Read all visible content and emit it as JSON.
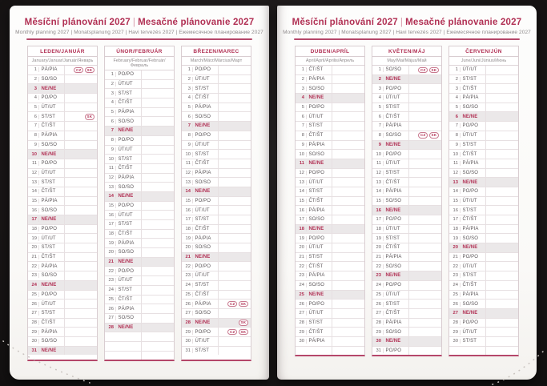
{
  "header": {
    "title_left": "Měsíční plánování 2027",
    "divider": "|",
    "title_right": "Mesačné plánovanie 2027",
    "subtitle": "Monthly planning 2027 | Monatsplanung 2027 | Havi tervezés 2027 | Ежемесячное планирование 2027"
  },
  "colors": {
    "accent": "#b13054",
    "rule": "#b5476a",
    "sunday_row_bg": "#ebe8e9",
    "grid_line": "#e7e0e2",
    "table_border": "#d9cdd1",
    "text": "#5c5659",
    "subtitle_gray": "#8f8a8c",
    "page_bg": "#fdfdfc",
    "backdrop": "#1c1819"
  },
  "badge_labels": [
    "CZ",
    "SK"
  ],
  "pages": [
    {
      "months": [
        {
          "name": "LEDEN/JANUÁR",
          "languages": "January/Januar/Január/Январь",
          "rows": [
            [
              1,
              "PÁ/PIA",
              0,
              [
                "CZ",
                "SK"
              ]
            ],
            [
              2,
              "SO/SO",
              0
            ],
            [
              3,
              "NE/NE",
              1
            ],
            [
              4,
              "PO/PO",
              0
            ],
            [
              5,
              "ÚT/UT",
              0
            ],
            [
              6,
              "ST/ST",
              0,
              [
                "SK"
              ]
            ],
            [
              7,
              "ČT/ŠT",
              0
            ],
            [
              8,
              "PÁ/PIA",
              0
            ],
            [
              9,
              "SO/SO",
              0
            ],
            [
              10,
              "NE/NE",
              1
            ],
            [
              11,
              "PO/PO",
              0
            ],
            [
              12,
              "ÚT/UT",
              0
            ],
            [
              13,
              "ST/ST",
              0
            ],
            [
              14,
              "ČT/ŠT",
              0
            ],
            [
              15,
              "PÁ/PIA",
              0
            ],
            [
              16,
              "SO/SO",
              0
            ],
            [
              17,
              "NE/NE",
              1
            ],
            [
              18,
              "PO/PO",
              0
            ],
            [
              19,
              "ÚT/UT",
              0
            ],
            [
              20,
              "ST/ST",
              0
            ],
            [
              21,
              "ČT/ŠT",
              0
            ],
            [
              22,
              "PÁ/PIA",
              0
            ],
            [
              23,
              "SO/SO",
              0
            ],
            [
              24,
              "NE/NE",
              1
            ],
            [
              25,
              "PO/PO",
              0
            ],
            [
              26,
              "ÚT/UT",
              0
            ],
            [
              27,
              "ST/ST",
              0
            ],
            [
              28,
              "ČT/ŠT",
              0
            ],
            [
              29,
              "PÁ/PIA",
              0
            ],
            [
              30,
              "SO/SO",
              0
            ],
            [
              31,
              "NE/NE",
              1
            ]
          ]
        },
        {
          "name": "ÚNOR/FEBRUÁR",
          "languages": "February/Februar/Február/Февраль",
          "rows": [
            [
              1,
              "PO/PO",
              0
            ],
            [
              2,
              "ÚT/UT",
              0
            ],
            [
              3,
              "ST/ST",
              0
            ],
            [
              4,
              "ČT/ŠT",
              0
            ],
            [
              5,
              "PÁ/PIA",
              0
            ],
            [
              6,
              "SO/SO",
              0
            ],
            [
              7,
              "NE/NE",
              1
            ],
            [
              8,
              "PO/PO",
              0
            ],
            [
              9,
              "ÚT/UT",
              0
            ],
            [
              10,
              "ST/ST",
              0
            ],
            [
              11,
              "ČT/ŠT",
              0
            ],
            [
              12,
              "PÁ/PIA",
              0
            ],
            [
              13,
              "SO/SO",
              0
            ],
            [
              14,
              "NE/NE",
              1
            ],
            [
              15,
              "PO/PO",
              0
            ],
            [
              16,
              "ÚT/UT",
              0
            ],
            [
              17,
              "ST/ST",
              0
            ],
            [
              18,
              "ČT/ŠT",
              0
            ],
            [
              19,
              "PÁ/PIA",
              0
            ],
            [
              20,
              "SO/SO",
              0
            ],
            [
              21,
              "NE/NE",
              1
            ],
            [
              22,
              "PO/PO",
              0
            ],
            [
              23,
              "ÚT/UT",
              0
            ],
            [
              24,
              "ST/ST",
              0
            ],
            [
              25,
              "ČT/ŠT",
              0
            ],
            [
              26,
              "PÁ/PIA",
              0
            ],
            [
              27,
              "SO/SO",
              0
            ],
            [
              28,
              "NE/NE",
              1
            ],
            [],
            [],
            []
          ]
        },
        {
          "name": "BŘEZEN/MAREC",
          "languages": "March/März/Március/Март",
          "rows": [
            [
              1,
              "PO/PO",
              0
            ],
            [
              2,
              "ÚT/UT",
              0
            ],
            [
              3,
              "ST/ST",
              0
            ],
            [
              4,
              "ČT/ŠT",
              0
            ],
            [
              5,
              "PÁ/PIA",
              0
            ],
            [
              6,
              "SO/SO",
              0
            ],
            [
              7,
              "NE/NE",
              1
            ],
            [
              8,
              "PO/PO",
              0
            ],
            [
              9,
              "ÚT/UT",
              0
            ],
            [
              10,
              "ST/ST",
              0
            ],
            [
              11,
              "ČT/ŠT",
              0
            ],
            [
              12,
              "PÁ/PIA",
              0
            ],
            [
              13,
              "SO/SO",
              0
            ],
            [
              14,
              "NE/NE",
              1
            ],
            [
              15,
              "PO/PO",
              0
            ],
            [
              16,
              "ÚT/UT",
              0
            ],
            [
              17,
              "ST/ST",
              0
            ],
            [
              18,
              "ČT/ŠT",
              0
            ],
            [
              19,
              "PÁ/PIA",
              0
            ],
            [
              20,
              "SO/SO",
              0
            ],
            [
              21,
              "NE/NE",
              1
            ],
            [
              22,
              "PO/PO",
              0
            ],
            [
              23,
              "ÚT/UT",
              0
            ],
            [
              24,
              "ST/ST",
              0
            ],
            [
              25,
              "ČT/ŠT",
              0
            ],
            [
              26,
              "PÁ/PIA",
              0,
              [
                "CZ",
                "SK"
              ]
            ],
            [
              27,
              "SO/SO",
              0
            ],
            [
              28,
              "NE/NE",
              1,
              [
                "SK"
              ]
            ],
            [
              29,
              "PO/PO",
              0,
              [
                "CZ",
                "SK"
              ]
            ],
            [
              30,
              "ÚT/UT",
              0
            ],
            [
              31,
              "ST/ST",
              0
            ]
          ]
        }
      ]
    },
    {
      "months": [
        {
          "name": "DUBEN/APRÍL",
          "languages": "April/April/Április/Апрель",
          "rows": [
            [
              1,
              "ČT/ŠT",
              0
            ],
            [
              2,
              "PÁ/PIA",
              0
            ],
            [
              3,
              "SO/SO",
              0
            ],
            [
              4,
              "NE/NE",
              1
            ],
            [
              5,
              "PO/PO",
              0
            ],
            [
              6,
              "ÚT/UT",
              0
            ],
            [
              7,
              "ST/ST",
              0
            ],
            [
              8,
              "ČT/ŠT",
              0
            ],
            [
              9,
              "PÁ/PIA",
              0
            ],
            [
              10,
              "SO/SO",
              0
            ],
            [
              11,
              "NE/NE",
              1
            ],
            [
              12,
              "PO/PO",
              0
            ],
            [
              13,
              "ÚT/UT",
              0
            ],
            [
              14,
              "ST/ST",
              0
            ],
            [
              15,
              "ČT/ŠT",
              0
            ],
            [
              16,
              "PÁ/PIA",
              0
            ],
            [
              17,
              "SO/SO",
              0
            ],
            [
              18,
              "NE/NE",
              1
            ],
            [
              19,
              "PO/PO",
              0
            ],
            [
              20,
              "ÚT/UT",
              0
            ],
            [
              21,
              "ST/ST",
              0
            ],
            [
              22,
              "ČT/ŠT",
              0
            ],
            [
              23,
              "PÁ/PIA",
              0
            ],
            [
              24,
              "SO/SO",
              0
            ],
            [
              25,
              "NE/NE",
              1
            ],
            [
              26,
              "PO/PO",
              0
            ],
            [
              27,
              "ÚT/UT",
              0
            ],
            [
              28,
              "ST/ST",
              0
            ],
            [
              29,
              "ČT/ŠT",
              0
            ],
            [
              30,
              "PÁ/PIA",
              0
            ],
            []
          ]
        },
        {
          "name": "KVĚTEN/MÁJ",
          "languages": "May/Mai/Május/Май",
          "rows": [
            [
              1,
              "SO/SO",
              0,
              [
                "CZ",
                "SK"
              ]
            ],
            [
              2,
              "NE/NE",
              1
            ],
            [
              3,
              "PO/PO",
              0
            ],
            [
              4,
              "ÚT/UT",
              0
            ],
            [
              5,
              "ST/ST",
              0
            ],
            [
              6,
              "ČT/ŠT",
              0
            ],
            [
              7,
              "PÁ/PIA",
              0
            ],
            [
              8,
              "SO/SO",
              0,
              [
                "CZ",
                "SK"
              ]
            ],
            [
              9,
              "NE/NE",
              1
            ],
            [
              10,
              "PO/PO",
              0
            ],
            [
              11,
              "ÚT/UT",
              0
            ],
            [
              12,
              "ST/ST",
              0
            ],
            [
              13,
              "ČT/ŠT",
              0
            ],
            [
              14,
              "PÁ/PIA",
              0
            ],
            [
              15,
              "SO/SO",
              0
            ],
            [
              16,
              "NE/NE",
              1
            ],
            [
              17,
              "PO/PO",
              0
            ],
            [
              18,
              "ÚT/UT",
              0
            ],
            [
              19,
              "ST/ST",
              0
            ],
            [
              20,
              "ČT/ŠT",
              0
            ],
            [
              21,
              "PÁ/PIA",
              0
            ],
            [
              22,
              "SO/SO",
              0
            ],
            [
              23,
              "NE/NE",
              1
            ],
            [
              24,
              "PO/PO",
              0
            ],
            [
              25,
              "ÚT/UT",
              0
            ],
            [
              26,
              "ST/ST",
              0
            ],
            [
              27,
              "ČT/ŠT",
              0
            ],
            [
              28,
              "PÁ/PIA",
              0
            ],
            [
              29,
              "SO/SO",
              0
            ],
            [
              30,
              "NE/NE",
              1
            ],
            [
              31,
              "PO/PO",
              0
            ]
          ]
        },
        {
          "name": "ČERVEN/JÚN",
          "languages": "June/Juni/Június/Июнь",
          "rows": [
            [
              1,
              "ÚT/UT",
              0
            ],
            [
              2,
              "ST/ST",
              0
            ],
            [
              3,
              "ČT/ŠT",
              0
            ],
            [
              4,
              "PÁ/PIA",
              0
            ],
            [
              5,
              "SO/SO",
              0
            ],
            [
              6,
              "NE/NE",
              1
            ],
            [
              7,
              "PO/PO",
              0
            ],
            [
              8,
              "ÚT/UT",
              0
            ],
            [
              9,
              "ST/ST",
              0
            ],
            [
              10,
              "ČT/ŠT",
              0
            ],
            [
              11,
              "PÁ/PIA",
              0
            ],
            [
              12,
              "SO/SO",
              0
            ],
            [
              13,
              "NE/NE",
              1
            ],
            [
              14,
              "PO/PO",
              0
            ],
            [
              15,
              "ÚT/UT",
              0
            ],
            [
              16,
              "ST/ST",
              0
            ],
            [
              17,
              "ČT/ŠT",
              0
            ],
            [
              18,
              "PÁ/PIA",
              0
            ],
            [
              19,
              "SO/SO",
              0
            ],
            [
              20,
              "NE/NE",
              1
            ],
            [
              21,
              "PO/PO",
              0
            ],
            [
              22,
              "ÚT/UT",
              0
            ],
            [
              23,
              "ST/ST",
              0
            ],
            [
              24,
              "ČT/ŠT",
              0
            ],
            [
              25,
              "PÁ/PIA",
              0
            ],
            [
              26,
              "SO/SO",
              0
            ],
            [
              27,
              "NE/NE",
              1
            ],
            [
              28,
              "PO/PO",
              0
            ],
            [
              29,
              "ÚT/UT",
              0
            ],
            [
              30,
              "ST/ST",
              0
            ],
            []
          ]
        }
      ]
    }
  ]
}
